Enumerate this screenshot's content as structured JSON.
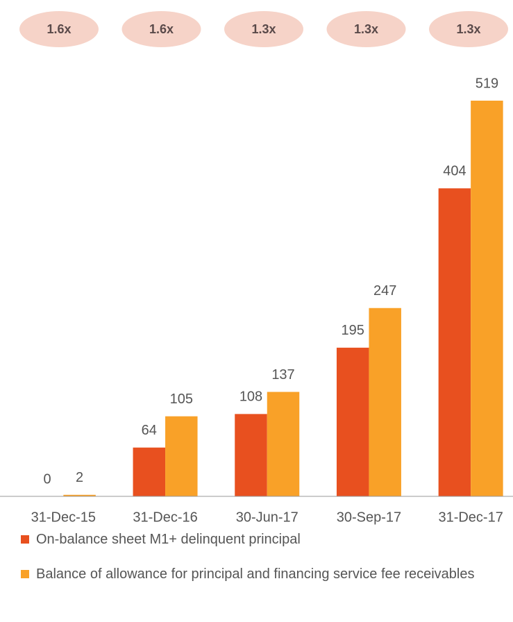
{
  "chart_data": {
    "type": "bar",
    "annotations": [
      "1.6x",
      "1.6x",
      "1.3x",
      "1.3x",
      "1.3x"
    ],
    "categories": [
      "31-Dec-15",
      "31-Dec-16",
      "30-Jun-17",
      "30-Sep-17",
      "31-Dec-17"
    ],
    "series": [
      {
        "name": "On-balance sheet M1+ delinquent principal",
        "color": "#e8501f",
        "values": [
          0,
          64,
          108,
          195,
          404
        ]
      },
      {
        "name": "Balance of allowance for principal and financing service fee receivables",
        "color": "#f9a128",
        "values": [
          2,
          105,
          137,
          247,
          519
        ]
      }
    ]
  }
}
